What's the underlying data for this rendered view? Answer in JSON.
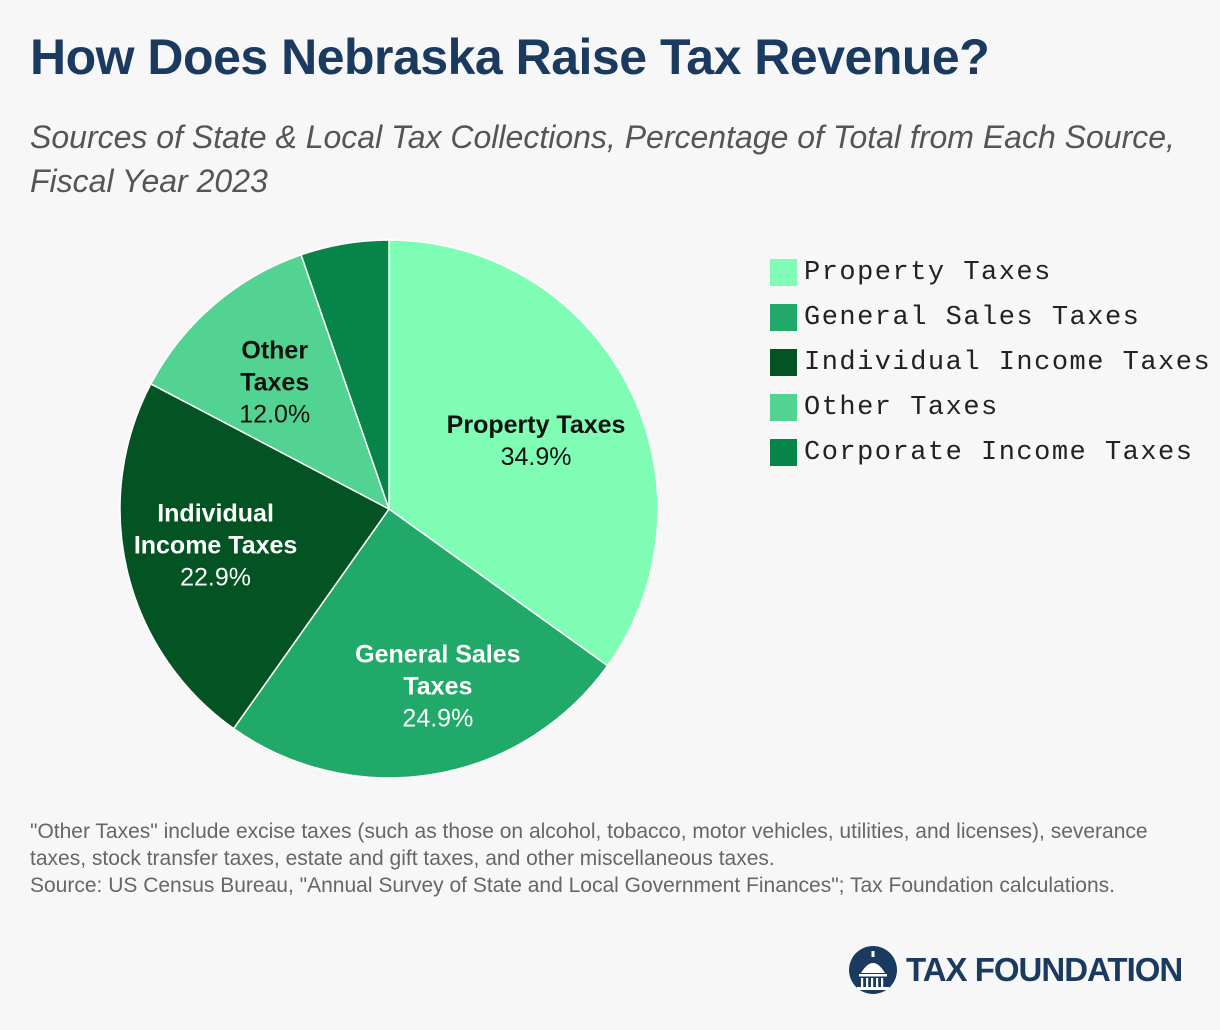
{
  "chart_data": {
    "type": "pie",
    "title": "How Does Nebraska Raise Tax Revenue?",
    "subtitle": "Sources of State & Local Tax Collections, Percentage of Total from Each Source, Fiscal Year 2023",
    "slices": [
      {
        "name": "Property Taxes",
        "label_lines": [
          "Property Taxes"
        ],
        "value": 34.9,
        "value_label": "34.9%",
        "color": "#80fdb4",
        "text_color": "#111111"
      },
      {
        "name": "General Sales Taxes",
        "label_lines": [
          "General Sales",
          "Taxes"
        ],
        "value": 24.9,
        "value_label": "24.9%",
        "color": "#21a96a",
        "text_color": "#ffffff"
      },
      {
        "name": "Individual Income Taxes",
        "label_lines": [
          "Individual",
          "Income Taxes"
        ],
        "value": 22.9,
        "value_label": "22.9%",
        "color": "#045322",
        "text_color": "#ffffff"
      },
      {
        "name": "Other Taxes",
        "label_lines": [
          "Other",
          "Taxes"
        ],
        "value": 12.0,
        "value_label": "12.0%",
        "color": "#52d391",
        "text_color": "#111111"
      },
      {
        "name": "Corporate Income Taxes",
        "label_lines": [],
        "value": 5.3,
        "value_label": "",
        "color": "#078447",
        "text_color": "#ffffff"
      }
    ],
    "legend": [
      "Property Taxes",
      "General Sales Taxes",
      "Individual Income Taxes",
      "Other Taxes",
      "Corporate Income Taxes"
    ],
    "legend_position": "right"
  },
  "footnote": {
    "line1": "\"Other Taxes\" include excise taxes (such as those on alcohol, tobacco, motor vehicles, utilities, and licenses), severance taxes, stock transfer taxes, estate and gift taxes, and other miscellaneous taxes.",
    "line2": "Source: US Census Bureau, \"Annual Survey of State and Local Government Finances\"; Tax Foundation calculations."
  },
  "brand": {
    "name": "TAX FOUNDATION",
    "color": "#1a3a5f"
  }
}
